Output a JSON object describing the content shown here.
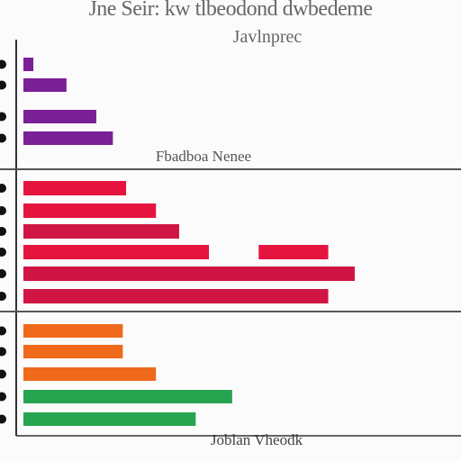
{
  "title": "Jne Seir: kw tlbeodond dwbedeme",
  "subtitle": "Javlnprec",
  "panel_label": "Fbadboa Nenee",
  "x_label": "Joblan Vheodk",
  "colors": {
    "purple": "#7a2096",
    "red": "#e5143e",
    "crimson": "#d01544",
    "orange": "#ef6a1a",
    "green": "#27a44f",
    "axis": "#333333",
    "divider": "#555555"
  },
  "chart_data": {
    "type": "bar",
    "orientation": "horizontal",
    "title": "Jne Seir: kw tlbeodond dwbedeme",
    "subtitle": "Javlnprec",
    "xlabel": "Joblan Vheodk",
    "xlim": [
      0,
      100
    ],
    "grid": false,
    "legend": "none",
    "panels": [
      {
        "label": "",
        "bars": [
          {
            "value": 3,
            "color": "purple"
          },
          {
            "value": 13,
            "color": "purple"
          },
          {
            "value": 22,
            "color": "purple"
          },
          {
            "value": 27,
            "color": "purple"
          }
        ]
      },
      {
        "label": "Fbadboa Nenee",
        "bars": [
          {
            "value": 31,
            "color": "red"
          },
          {
            "value": 40,
            "color": "red"
          },
          {
            "value": 47,
            "color": "crimson"
          },
          {
            "value": 56,
            "color": "red",
            "extra": [
              71,
              92
            ]
          },
          {
            "value": 100,
            "color": "crimson"
          },
          {
            "value": 92,
            "color": "crimson"
          }
        ]
      },
      {
        "label": "",
        "bars": [
          {
            "value": 30,
            "color": "orange"
          },
          {
            "value": 30,
            "color": "orange"
          },
          {
            "value": 40,
            "color": "orange"
          },
          {
            "value": 63,
            "color": "green"
          },
          {
            "value": 52,
            "color": "green"
          }
        ]
      }
    ]
  }
}
